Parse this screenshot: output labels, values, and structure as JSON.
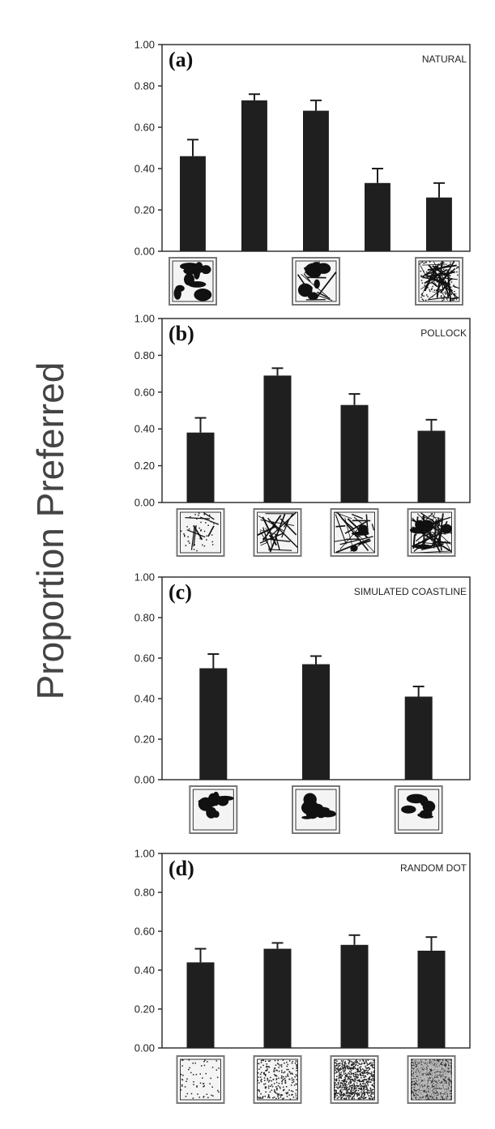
{
  "ylabel": "Proportion Preferred",
  "colors": {
    "bar": "#1f1f1f",
    "axis": "#333333",
    "thumb_border": "#777777"
  },
  "chart_data": [
    {
      "type": "bar",
      "panel": "(a)",
      "title": "NATURAL",
      "ylim": [
        0,
        1
      ],
      "yticks": [
        "0.00",
        "0.20",
        "0.40",
        "0.60",
        "0.80",
        "1.00"
      ],
      "values": [
        0.46,
        0.73,
        0.68,
        0.33,
        0.26
      ],
      "errors": [
        0.08,
        0.03,
        0.05,
        0.07,
        0.07
      ],
      "thumbnails": [
        "dense-black-blotches",
        "",
        "black-leaf-shapes",
        "",
        "fine-scribble-texture"
      ],
      "thumb_slots": [
        0,
        2,
        4
      ]
    },
    {
      "type": "bar",
      "panel": "(b)",
      "title": "POLLOCK",
      "ylim": [
        0,
        1
      ],
      "yticks": [
        "0.00",
        "0.20",
        "0.40",
        "0.60",
        "0.80",
        "1.00"
      ],
      "values": [
        0.38,
        0.69,
        0.53,
        0.39
      ],
      "errors": [
        0.08,
        0.04,
        0.06,
        0.06
      ],
      "thumbnails": [
        "sparse-drips",
        "thin-lines",
        "medium-drips",
        "dense-drips"
      ],
      "thumb_slots": [
        0,
        1,
        2,
        3
      ]
    },
    {
      "type": "bar",
      "panel": "(c)",
      "title": "SIMULATED COASTLINE",
      "ylim": [
        0,
        1
      ],
      "yticks": [
        "0.00",
        "0.20",
        "0.40",
        "0.60",
        "0.80",
        "1.00"
      ],
      "values": [
        0.55,
        0.57,
        0.41
      ],
      "errors": [
        0.07,
        0.04,
        0.05
      ],
      "thumbnails": [
        "coastline-1",
        "coastline-2",
        "coastline-3"
      ],
      "thumb_slots": [
        0,
        1,
        2
      ]
    },
    {
      "type": "bar",
      "panel": "(d)",
      "title": "RANDOM DOT",
      "ylim": [
        0,
        1
      ],
      "yticks": [
        "0.00",
        "0.20",
        "0.40",
        "0.60",
        "0.80",
        "1.00"
      ],
      "values": [
        0.44,
        0.51,
        0.53,
        0.5
      ],
      "errors": [
        0.07,
        0.03,
        0.05,
        0.07
      ],
      "thumbnails": [
        "sparse-dots",
        "light-dots",
        "medium-dots",
        "dense-dots"
      ],
      "thumb_slots": [
        0,
        1,
        2,
        3
      ]
    }
  ]
}
